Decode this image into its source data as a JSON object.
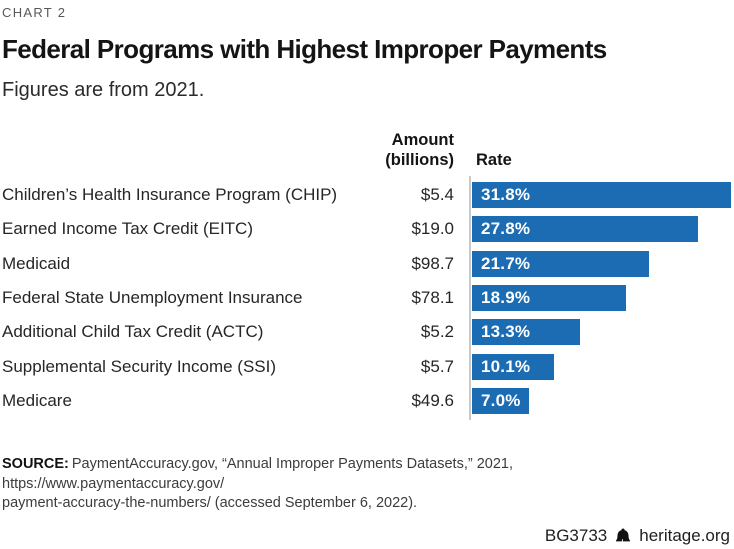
{
  "kicker": "CHART 2",
  "title": "Federal Programs with Highest Improper Payments",
  "subtitle": "Figures are from 2021.",
  "columns": {
    "amount_line1": "Amount",
    "amount_line2": "(billions)",
    "rate": "Rate"
  },
  "rows": [
    {
      "label": "Children’s Health Insurance Program (CHIP)",
      "amount": "$5.4",
      "rate_label": "31.8%",
      "rate_value": 31.8
    },
    {
      "label": "Earned Income Tax Credit (EITC)",
      "amount": "$19.0",
      "rate_label": "27.8%",
      "rate_value": 27.8
    },
    {
      "label": "Medicaid",
      "amount": "$98.7",
      "rate_label": "21.7%",
      "rate_value": 21.7
    },
    {
      "label": "Federal State Unemployment Insurance",
      "amount": "$78.1",
      "rate_label": "18.9%",
      "rate_value": 18.9
    },
    {
      "label": "Additional Child Tax Credit (ACTC)",
      "amount": "$5.2",
      "rate_label": "13.3%",
      "rate_value": 13.3
    },
    {
      "label": "Supplemental Security Income (SSI)",
      "amount": "$5.7",
      "rate_label": "10.1%",
      "rate_value": 10.1
    },
    {
      "label": "Medicare",
      "amount": "$49.6",
      "rate_label": "7.0%",
      "rate_value": 7.0
    }
  ],
  "chart_data": {
    "type": "bar",
    "orientation": "horizontal",
    "title": "Federal Programs with Highest Improper Payments",
    "subtitle": "Figures are from 2021.",
    "categories": [
      "Children’s Health Insurance Program (CHIP)",
      "Earned Income Tax Credit (EITC)",
      "Medicaid",
      "Federal State Unemployment Insurance",
      "Additional Child Tax Credit (ACTC)",
      "Supplemental Security Income (SSI)",
      "Medicare"
    ],
    "series": [
      {
        "name": "Amount (billions)",
        "values": [
          5.4,
          19.0,
          98.7,
          78.1,
          5.2,
          5.7,
          49.6
        ]
      },
      {
        "name": "Rate (%)",
        "values": [
          31.8,
          27.8,
          21.7,
          18.9,
          13.3,
          10.1,
          7.0
        ]
      }
    ],
    "data_labels": [
      "31.8%",
      "27.8%",
      "21.7%",
      "18.9%",
      "13.3%",
      "10.1%",
      "7.0%"
    ],
    "xlim": [
      0,
      31.8
    ],
    "grid": false,
    "legend": false
  },
  "colors": {
    "bar": "#1B6CB2",
    "axis": "#C9C9C9",
    "bar_label_text": "#FFFFFF"
  },
  "source": {
    "label": "SOURCE:",
    "line1": "PaymentAccuracy.gov, “Annual Improper Payments Datasets,” 2021, https://www.paymentaccuracy.gov/",
    "line2": "payment-accuracy-the-numbers/ (accessed September 6, 2022)."
  },
  "footer": {
    "report_id": "BG3733",
    "site": "heritage.org",
    "icon": "liberty-bell-icon"
  }
}
